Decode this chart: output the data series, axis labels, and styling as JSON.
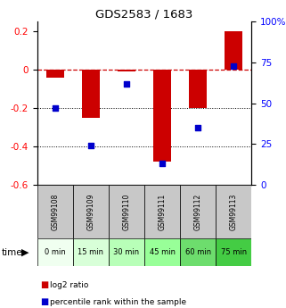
{
  "title": "GDS2583 / 1683",
  "samples": [
    "GSM99108",
    "GSM99109",
    "GSM99110",
    "GSM99111",
    "GSM99112",
    "GSM99113"
  ],
  "time_labels": [
    "0 min",
    "15 min",
    "30 min",
    "45 min",
    "60 min",
    "75 min"
  ],
  "time_colors": [
    "#f0fff0",
    "#d8ffd8",
    "#b8ffb8",
    "#98ff98",
    "#6ddd6d",
    "#44cc44"
  ],
  "log2_ratio": [
    -0.04,
    -0.25,
    -0.01,
    -0.48,
    -0.2,
    0.2
  ],
  "percentile_rank": [
    47,
    24,
    62,
    13,
    35,
    73
  ],
  "bar_color": "#cc0000",
  "dot_color": "#0000cc",
  "ylim_left": [
    -0.6,
    0.25
  ],
  "ylim_right": [
    0,
    100
  ],
  "yticks_left": [
    0.2,
    0.0,
    -0.2,
    -0.4,
    -0.6
  ],
  "yticks_right": [
    100,
    75,
    50,
    25,
    0
  ],
  "dotted_lines": [
    -0.2,
    -0.4
  ],
  "sample_box_color": "#c8c8c8",
  "legend_items": [
    "log2 ratio",
    "percentile rank within the sample"
  ],
  "bar_width": 0.5
}
